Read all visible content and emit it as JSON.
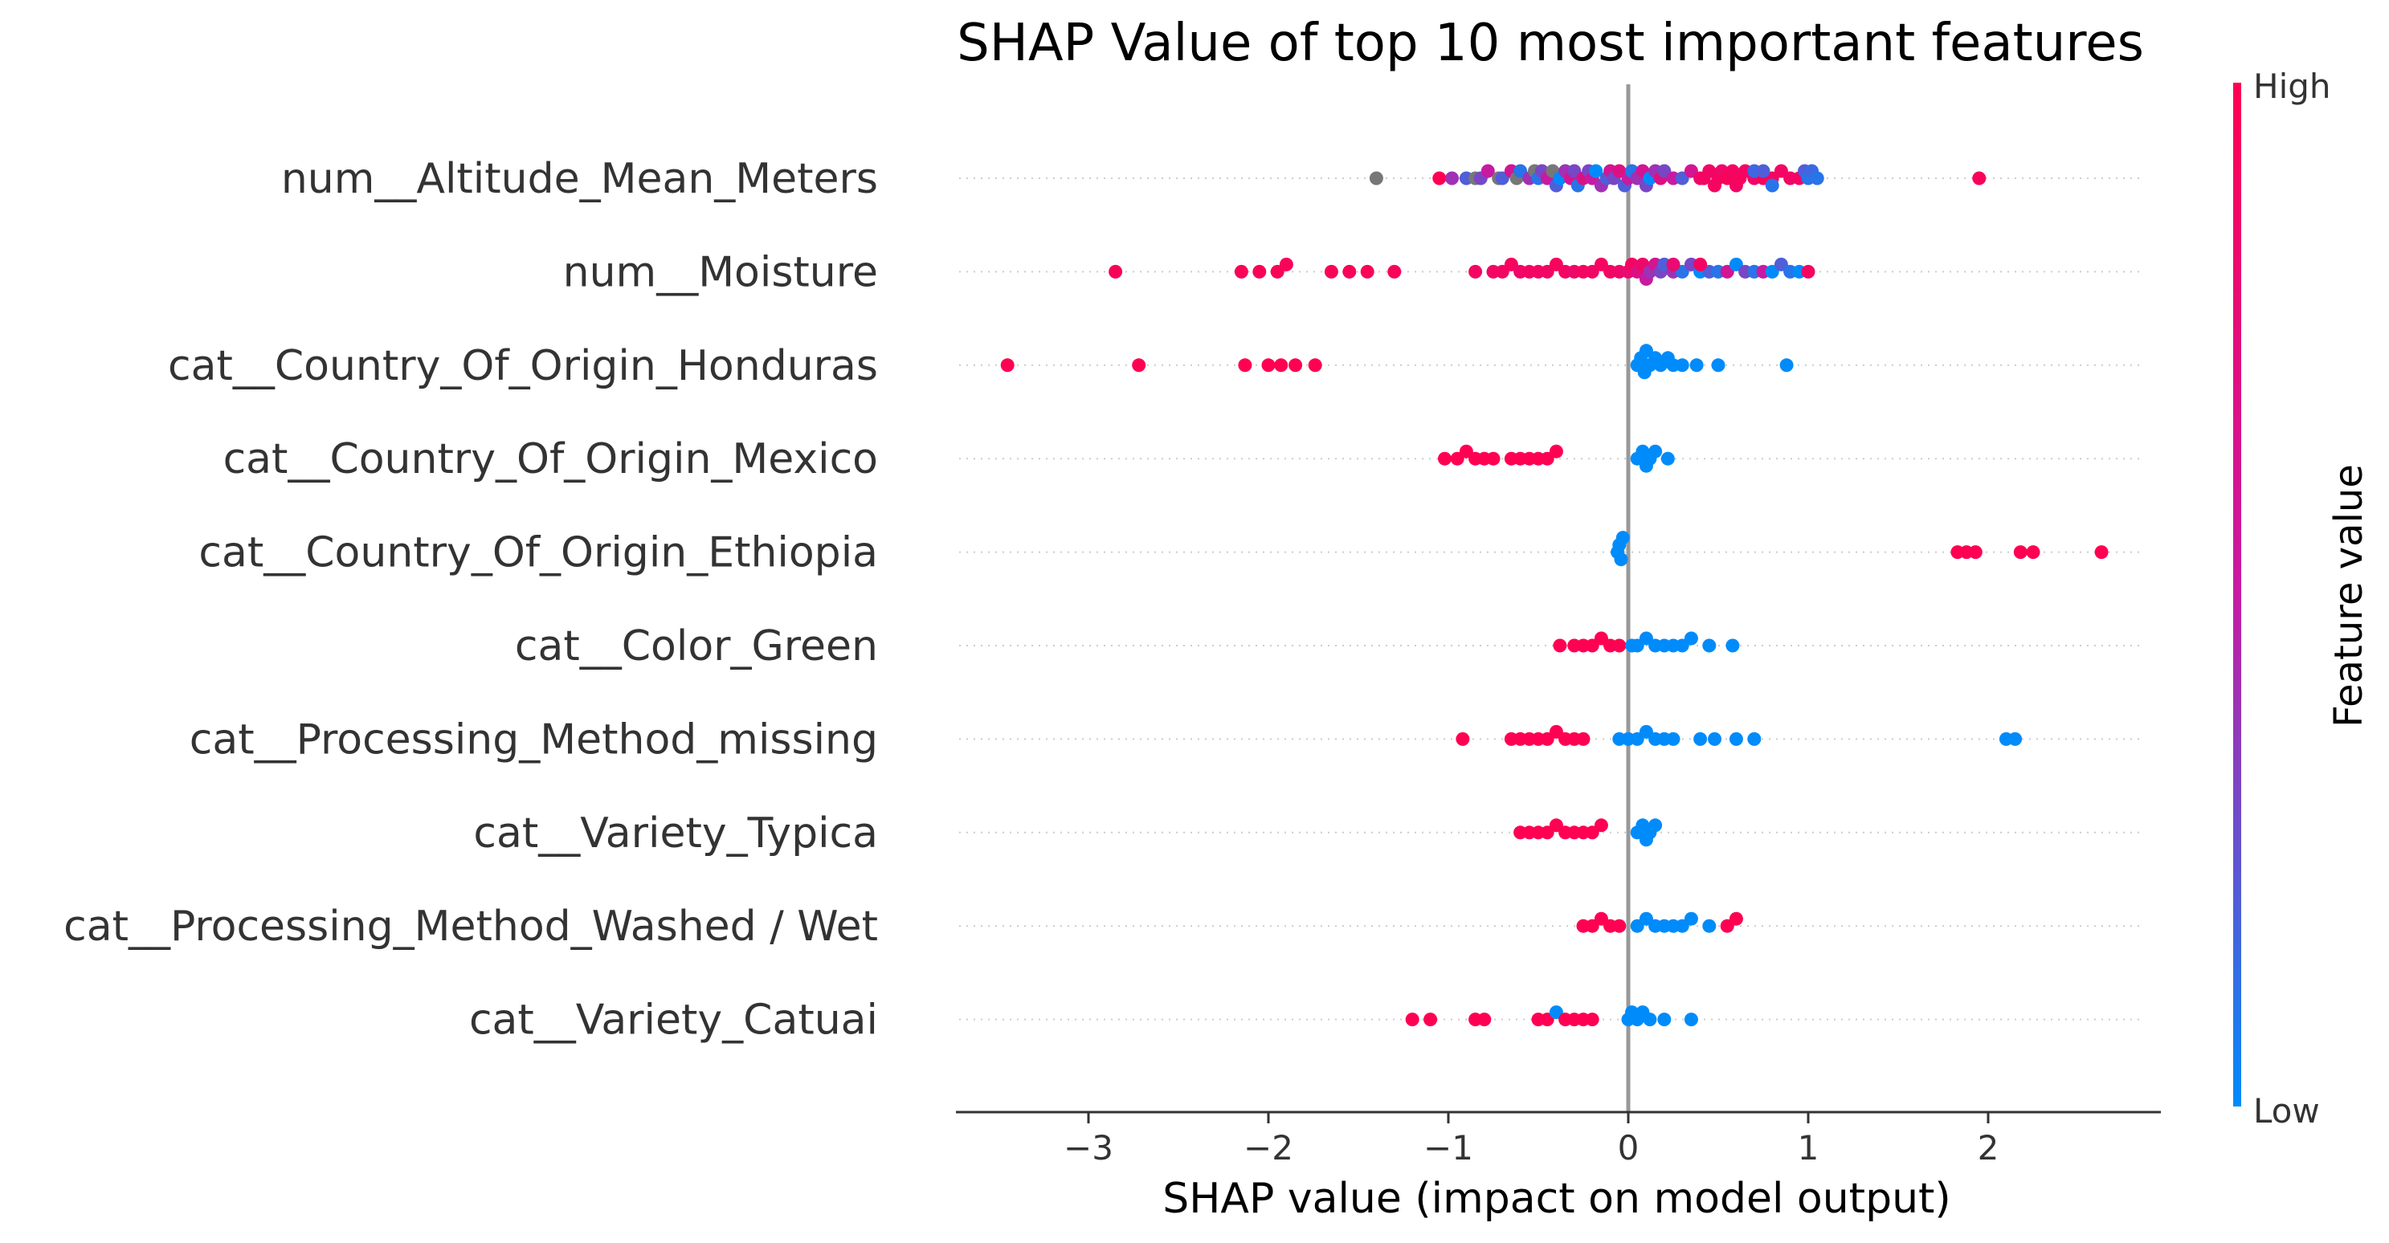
{
  "chart_data": {
    "type": "scatter",
    "subtype": "shap-beeswarm",
    "title": "SHAP Value of top 10 most important features",
    "xlabel": "SHAP value (impact on model output)",
    "ylabel": "",
    "xlim": [
      -3.75,
      2.95
    ],
    "xticks": [
      -3,
      -2,
      -1,
      0,
      1,
      2
    ],
    "xtick_labels": [
      "−3",
      "−2",
      "−1",
      "0",
      "1",
      "2"
    ],
    "grid": false,
    "colorbar": {
      "label": "Feature value",
      "high_label": "High",
      "low_label": "Low",
      "high_color": "#ff0052",
      "mid_color": "#c71aa3",
      "low_color": "#008bfb",
      "missing_color": "#777777"
    },
    "features": [
      {
        "name": "num__Altitude_Mean_Meters",
        "points": [
          [
            -1.4,
            -1
          ],
          [
            -1.05,
            1
          ],
          [
            -0.98,
            0.4
          ],
          [
            -0.9,
            0.2
          ],
          [
            -0.85,
            -1
          ],
          [
            -0.82,
            0.3
          ],
          [
            -0.78,
            0.5
          ],
          [
            -0.72,
            -1
          ],
          [
            -0.7,
            0.2
          ],
          [
            -0.65,
            0.6
          ],
          [
            -0.62,
            -1
          ],
          [
            -0.6,
            0.1
          ],
          [
            -0.55,
            0.4
          ],
          [
            -0.52,
            -1
          ],
          [
            -0.5,
            0.1
          ],
          [
            -0.48,
            0.3
          ],
          [
            -0.45,
            0.5
          ],
          [
            -0.42,
            -1
          ],
          [
            -0.4,
            0.2
          ],
          [
            -0.38,
            0.0
          ],
          [
            -0.35,
            0.4
          ],
          [
            -0.32,
            0.6
          ],
          [
            -0.3,
            0.3
          ],
          [
            -0.28,
            0.1
          ],
          [
            -0.25,
            0.7
          ],
          [
            -0.22,
            0.3
          ],
          [
            -0.2,
            0.5
          ],
          [
            -0.18,
            0.0
          ],
          [
            -0.15,
            0.4
          ],
          [
            -0.12,
            0.2
          ],
          [
            -0.1,
            0.6
          ],
          [
            -0.08,
            0.3
          ],
          [
            -0.05,
            0.7
          ],
          [
            -0.02,
            0.2
          ],
          [
            0.0,
            0.5
          ],
          [
            0.02,
            0.1
          ],
          [
            0.05,
            0.4
          ],
          [
            0.08,
            0.6
          ],
          [
            0.1,
            0.3
          ],
          [
            0.12,
            0.0
          ],
          [
            0.15,
            0.4
          ],
          [
            0.18,
            0.7
          ],
          [
            0.2,
            0.3
          ],
          [
            0.25,
            0.5
          ],
          [
            0.3,
            0.2
          ],
          [
            0.35,
            0.6
          ],
          [
            0.4,
            0.85
          ],
          [
            0.42,
            0.9
          ],
          [
            0.45,
            0.88
          ],
          [
            0.48,
            0.92
          ],
          [
            0.5,
            0.9
          ],
          [
            0.52,
            0.87
          ],
          [
            0.55,
            0.95
          ],
          [
            0.58,
            0.9
          ],
          [
            0.6,
            0.88
          ],
          [
            0.62,
            0.93
          ],
          [
            0.65,
            0.9
          ],
          [
            0.7,
            0.86
          ],
          [
            0.75,
            0.92
          ],
          [
            0.8,
            0.9
          ],
          [
            0.85,
            0.9
          ],
          [
            0.9,
            0.88
          ],
          [
            0.95,
            0.9
          ],
          [
            0.98,
            0.2
          ],
          [
            1.0,
            0.1
          ],
          [
            1.02,
            0.15
          ],
          [
            1.05,
            0.1
          ],
          [
            0.7,
            0.15
          ],
          [
            0.75,
            0.2
          ],
          [
            0.8,
            0.1
          ],
          [
            1.95,
            0.95
          ]
        ]
      },
      {
        "name": "num__Moisture",
        "points": [
          [
            -2.85,
            0.95
          ],
          [
            -2.15,
            0.95
          ],
          [
            -2.05,
            0.95
          ],
          [
            -1.95,
            0.95
          ],
          [
            -1.9,
            0.95
          ],
          [
            -1.65,
            0.95
          ],
          [
            -1.55,
            0.95
          ],
          [
            -1.45,
            0.95
          ],
          [
            -1.3,
            0.95
          ],
          [
            -0.85,
            0.9
          ],
          [
            -0.75,
            0.88
          ],
          [
            -0.7,
            0.9
          ],
          [
            -0.65,
            0.92
          ],
          [
            -0.6,
            0.87
          ],
          [
            -0.55,
            0.9
          ],
          [
            -0.5,
            0.9
          ],
          [
            -0.45,
            0.88
          ],
          [
            -0.4,
            0.93
          ],
          [
            -0.35,
            0.9
          ],
          [
            -0.3,
            0.85
          ],
          [
            -0.25,
            0.9
          ],
          [
            -0.2,
            0.88
          ],
          [
            -0.15,
            0.92
          ],
          [
            -0.1,
            0.9
          ],
          [
            -0.05,
            0.85
          ],
          [
            0.0,
            0.8
          ],
          [
            0.02,
            0.9
          ],
          [
            0.05,
            0.7
          ],
          [
            0.08,
            0.85
          ],
          [
            0.1,
            0.5
          ],
          [
            0.12,
            0.4
          ],
          [
            0.15,
            0.6
          ],
          [
            0.18,
            0.3
          ],
          [
            0.2,
            0.2
          ],
          [
            0.25,
            0.4
          ],
          [
            0.3,
            0.1
          ],
          [
            0.35,
            0.3
          ],
          [
            0.4,
            0.0
          ],
          [
            0.45,
            0.2
          ],
          [
            0.5,
            0.1
          ],
          [
            0.55,
            0.6
          ],
          [
            0.6,
            0.0
          ],
          [
            0.65,
            0.3
          ],
          [
            0.7,
            0.1
          ],
          [
            0.75,
            0.5
          ],
          [
            0.8,
            0.0
          ],
          [
            0.85,
            0.2
          ],
          [
            0.9,
            0.1
          ],
          [
            0.95,
            0.0
          ],
          [
            1.0,
            0.9
          ],
          [
            0.25,
            0.8
          ],
          [
            0.4,
            0.9
          ]
        ]
      },
      {
        "name": "cat__Country_Of_Origin_Honduras",
        "points": [
          [
            -3.45,
            1
          ],
          [
            -2.72,
            1
          ],
          [
            -2.13,
            1
          ],
          [
            -2.0,
            1
          ],
          [
            -1.93,
            1
          ],
          [
            -1.85,
            1
          ],
          [
            -1.74,
            1
          ],
          [
            0.05,
            0
          ],
          [
            0.07,
            0
          ],
          [
            0.09,
            0
          ],
          [
            0.1,
            0
          ],
          [
            0.12,
            0
          ],
          [
            0.15,
            0
          ],
          [
            0.18,
            0
          ],
          [
            0.22,
            0
          ],
          [
            0.25,
            0
          ],
          [
            0.3,
            0
          ],
          [
            0.38,
            0
          ],
          [
            0.5,
            0
          ],
          [
            0.88,
            0
          ]
        ]
      },
      {
        "name": "cat__Country_Of_Origin_Mexico",
        "points": [
          [
            -1.02,
            1
          ],
          [
            -0.95,
            1
          ],
          [
            -0.9,
            1
          ],
          [
            -0.85,
            1
          ],
          [
            -0.8,
            1
          ],
          [
            -0.75,
            1
          ],
          [
            -0.65,
            1
          ],
          [
            -0.6,
            1
          ],
          [
            -0.55,
            1
          ],
          [
            -0.5,
            1
          ],
          [
            -0.45,
            1
          ],
          [
            -0.4,
            1
          ],
          [
            0.05,
            0
          ],
          [
            0.08,
            0
          ],
          [
            0.1,
            0
          ],
          [
            0.12,
            0
          ],
          [
            0.15,
            0
          ],
          [
            0.22,
            0
          ]
        ]
      },
      {
        "name": "cat__Country_Of_Origin_Ethiopia",
        "points": [
          [
            -0.06,
            0
          ],
          [
            -0.05,
            0
          ],
          [
            -0.04,
            0
          ],
          [
            -0.03,
            0
          ],
          [
            1.83,
            1
          ],
          [
            1.88,
            1
          ],
          [
            1.93,
            1
          ],
          [
            2.18,
            1
          ],
          [
            2.25,
            1
          ],
          [
            2.63,
            1
          ]
        ]
      },
      {
        "name": "cat__Color_Green",
        "points": [
          [
            -0.38,
            1
          ],
          [
            -0.3,
            1
          ],
          [
            -0.25,
            1
          ],
          [
            -0.2,
            1
          ],
          [
            -0.15,
            1
          ],
          [
            -0.1,
            1
          ],
          [
            -0.05,
            1
          ],
          [
            0.02,
            0
          ],
          [
            0.05,
            0
          ],
          [
            0.1,
            0
          ],
          [
            0.15,
            0
          ],
          [
            0.2,
            0
          ],
          [
            0.25,
            0
          ],
          [
            0.3,
            0
          ],
          [
            0.35,
            0
          ],
          [
            0.45,
            0
          ],
          [
            0.58,
            0
          ]
        ]
      },
      {
        "name": "cat__Processing_Method_missing",
        "points": [
          [
            -0.92,
            1
          ],
          [
            -0.65,
            1
          ],
          [
            -0.6,
            1
          ],
          [
            -0.55,
            1
          ],
          [
            -0.5,
            1
          ],
          [
            -0.45,
            1
          ],
          [
            -0.4,
            1
          ],
          [
            -0.35,
            1
          ],
          [
            -0.3,
            1
          ],
          [
            -0.25,
            1
          ],
          [
            -0.05,
            0
          ],
          [
            0.0,
            0
          ],
          [
            0.05,
            0
          ],
          [
            0.1,
            0
          ],
          [
            0.15,
            0
          ],
          [
            0.2,
            0
          ],
          [
            0.25,
            0
          ],
          [
            0.4,
            0
          ],
          [
            0.48,
            0
          ],
          [
            0.6,
            0
          ],
          [
            0.7,
            0
          ],
          [
            2.1,
            0
          ],
          [
            2.15,
            0
          ]
        ]
      },
      {
        "name": "cat__Variety_Typica",
        "points": [
          [
            -0.6,
            1
          ],
          [
            -0.55,
            1
          ],
          [
            -0.5,
            1
          ],
          [
            -0.45,
            1
          ],
          [
            -0.4,
            1
          ],
          [
            -0.35,
            1
          ],
          [
            -0.3,
            1
          ],
          [
            -0.25,
            1
          ],
          [
            -0.2,
            1
          ],
          [
            -0.15,
            1
          ],
          [
            0.05,
            0
          ],
          [
            0.08,
            0
          ],
          [
            0.1,
            0
          ],
          [
            0.12,
            0
          ],
          [
            0.15,
            0
          ]
        ]
      },
      {
        "name": "cat__Processing_Method_Washed / Wet",
        "points": [
          [
            -0.25,
            1
          ],
          [
            -0.2,
            1
          ],
          [
            -0.15,
            1
          ],
          [
            -0.1,
            1
          ],
          [
            -0.05,
            1
          ],
          [
            0.05,
            0
          ],
          [
            0.1,
            0
          ],
          [
            0.15,
            0
          ],
          [
            0.2,
            0
          ],
          [
            0.25,
            0
          ],
          [
            0.3,
            0
          ],
          [
            0.35,
            0
          ],
          [
            0.45,
            0
          ],
          [
            0.55,
            1
          ],
          [
            0.6,
            1
          ]
        ]
      },
      {
        "name": "cat__Variety_Catuai",
        "points": [
          [
            -1.2,
            1
          ],
          [
            -1.1,
            1
          ],
          [
            -0.85,
            1
          ],
          [
            -0.8,
            1
          ],
          [
            -0.5,
            1
          ],
          [
            -0.45,
            1
          ],
          [
            -0.4,
            0
          ],
          [
            -0.35,
            1
          ],
          [
            -0.3,
            1
          ],
          [
            -0.25,
            1
          ],
          [
            -0.2,
            1
          ],
          [
            0.0,
            0
          ],
          [
            0.02,
            0
          ],
          [
            0.05,
            0
          ],
          [
            0.08,
            0
          ],
          [
            0.12,
            0
          ],
          [
            0.2,
            0
          ],
          [
            0.35,
            0
          ]
        ]
      }
    ]
  }
}
